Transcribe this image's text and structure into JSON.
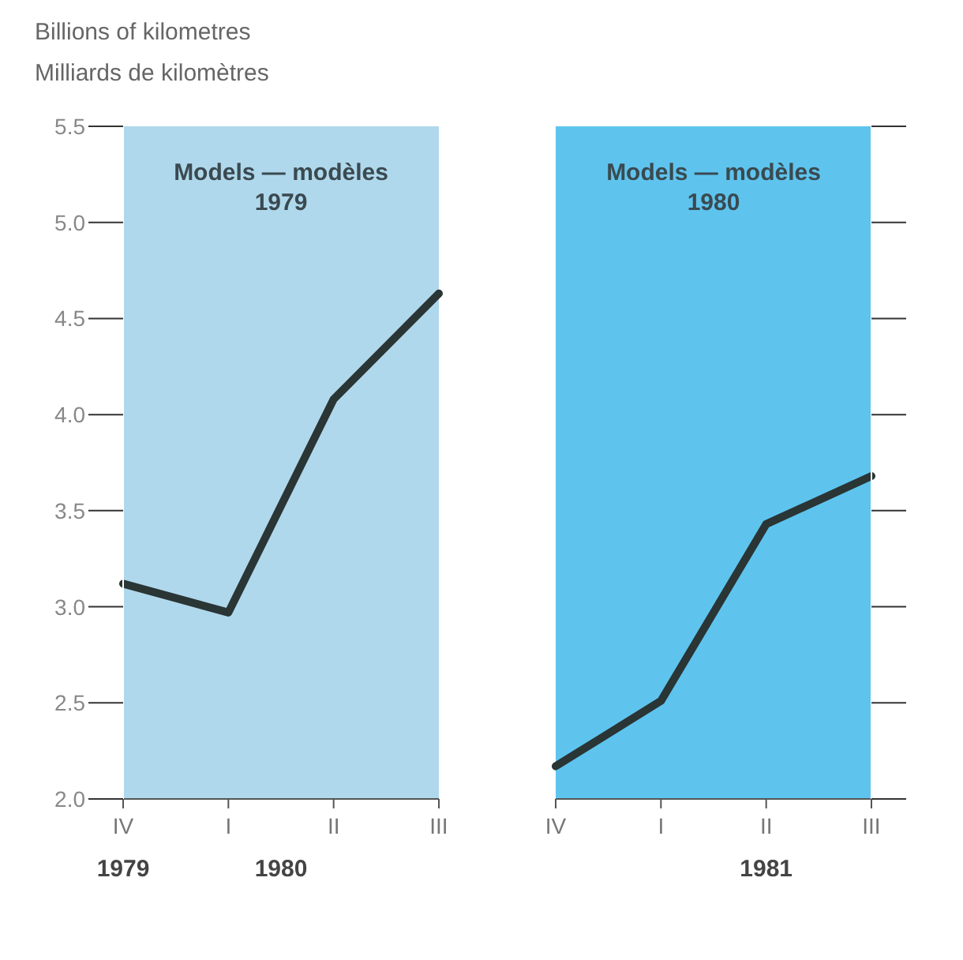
{
  "chart_data": [
    {
      "type": "line",
      "ylabel": "Billions of kilometres\nMilliards de kilomètres",
      "categories": [
        "IV",
        "I",
        "II",
        "III"
      ],
      "series": [
        {
          "color": "#2a3535",
          "values": [
            3.12,
            2.97,
            4.08,
            4.63
          ]
        }
      ],
      "ylim": [
        2.0,
        5.5
      ],
      "yticks": [
        {
          "value": 2.0,
          "label": "2.0"
        },
        {
          "value": 2.5,
          "label": "2.5"
        },
        {
          "value": 3.0,
          "label": "3.0"
        },
        {
          "value": 3.5,
          "label": "3.5"
        },
        {
          "value": 4.0,
          "label": "4.0"
        },
        {
          "value": 4.5,
          "label": "4.5"
        },
        {
          "value": 5.0,
          "label": "5.0"
        },
        {
          "value": 5.5,
          "label": "5.5"
        }
      ],
      "bands": [
        {
          "axis": "x",
          "from": "IV",
          "to": "III",
          "label": "Models — modèles\n1979",
          "color": "#b0d8ec"
        }
      ],
      "annotations": [
        "1979",
        "1980"
      ],
      "grid": false,
      "legend": false,
      "marker": "none",
      "line_style": "solid"
    },
    {
      "type": "line",
      "categories": [
        "IV",
        "I",
        "II",
        "III"
      ],
      "series": [
        {
          "color": "#2a3535",
          "values": [
            2.17,
            2.51,
            3.43,
            3.68
          ]
        }
      ],
      "ylim": [
        2.0,
        5.5
      ],
      "yticks": [
        {
          "value": 2.0,
          "label": null
        },
        {
          "value": 2.5,
          "label": null
        },
        {
          "value": 3.0,
          "label": null
        },
        {
          "value": 3.5,
          "label": null
        },
        {
          "value": 4.0,
          "label": null
        },
        {
          "value": 4.5,
          "label": null
        },
        {
          "value": 5.0,
          "label": null
        },
        {
          "value": 5.5,
          "label": null
        }
      ],
      "tick_labels": "x",
      "bands": [
        {
          "axis": "x",
          "from": "IV",
          "to": "III",
          "label": "Models — modèles\n1980",
          "color": "#5ec4ee"
        }
      ],
      "annotations": [
        "1981"
      ],
      "grid": false,
      "legend": false,
      "marker": "none",
      "line_style": "solid"
    }
  ]
}
